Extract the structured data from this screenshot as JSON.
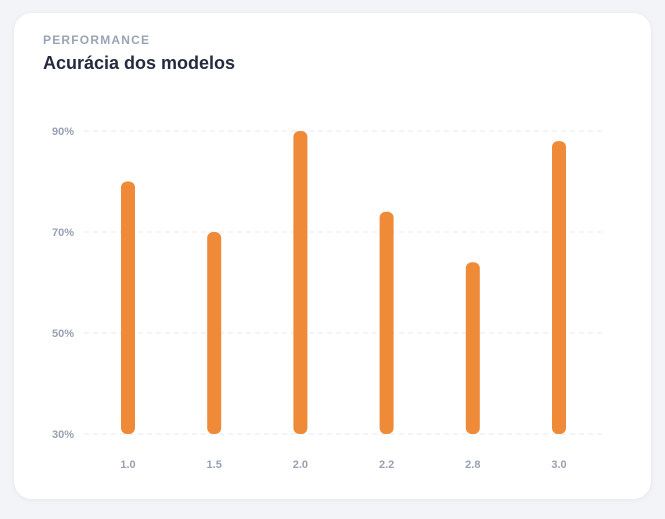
{
  "header": {
    "eyebrow": "PERFORMANCE",
    "title": "Acurácia dos modelos"
  },
  "colors": {
    "bar": "#ef8b38",
    "grid": "#e6e9ef",
    "tick_text": "#98a1b3",
    "title_text": "#232b3d",
    "eyebrow_text": "#9aa3b5"
  },
  "chart_data": {
    "type": "bar",
    "title": "Acurácia dos modelos",
    "xlabel": "",
    "ylabel": "",
    "categories": [
      "1.0",
      "1.5",
      "2.0",
      "2.2",
      "2.8",
      "3.0"
    ],
    "values": [
      80,
      70,
      90,
      74,
      64,
      88
    ],
    "ylim": [
      30,
      90
    ],
    "yticks": [
      30,
      50,
      70,
      90
    ],
    "ytick_labels": [
      "30%",
      "50%",
      "70%",
      "90%"
    ],
    "grid": true,
    "grid_style": "dashed",
    "legend": "none"
  }
}
